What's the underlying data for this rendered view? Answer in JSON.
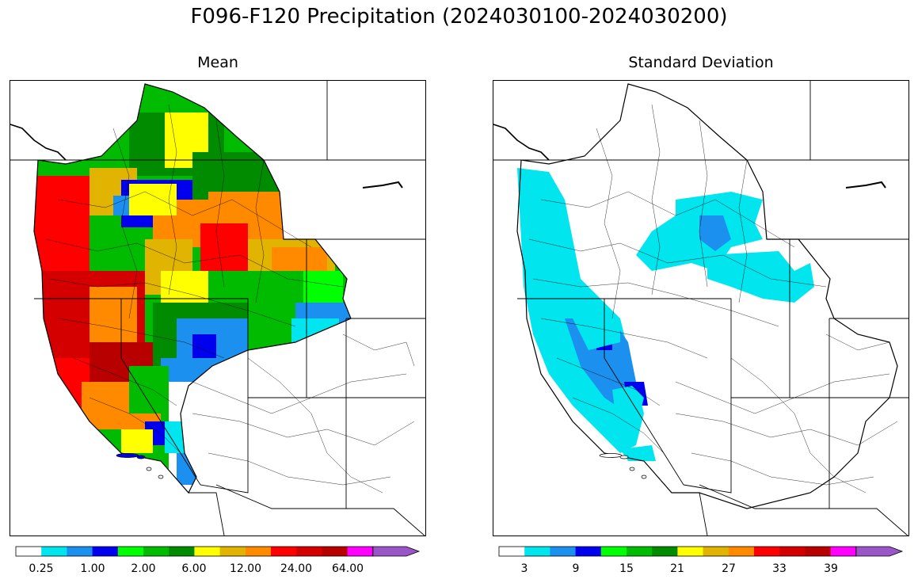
{
  "title": "F096-F120 Precipitation (2024030100-2024030200)",
  "panels": [
    {
      "title": "Mean",
      "colorbar": {
        "colors": [
          "#ffffff",
          "#00e5ee",
          "#1c90ee",
          "#0000ee",
          "#00ff00",
          "#00bb00",
          "#008b00",
          "#ffff00",
          "#e0b400",
          "#ff8a00",
          "#ff0000",
          "#d40000",
          "#b80000",
          "#ff00ff",
          "#9a55c8"
        ],
        "tick_labels": [
          "0.25",
          "1.00",
          "2.00",
          "6.00",
          "12.00",
          "24.00",
          "64.00"
        ],
        "extend": "max"
      }
    },
    {
      "title": "Standard Deviation",
      "colorbar": {
        "colors": [
          "#ffffff",
          "#00e5ee",
          "#1c90ee",
          "#0000ee",
          "#00ff00",
          "#00bb00",
          "#008b00",
          "#ffff00",
          "#e0b400",
          "#ff8a00",
          "#ff0000",
          "#d40000",
          "#b80000",
          "#ff00ff",
          "#9a55c8"
        ],
        "tick_labels": [
          "3",
          "9",
          "15",
          "21",
          "27",
          "33",
          "39"
        ],
        "extend": "max"
      }
    }
  ]
}
